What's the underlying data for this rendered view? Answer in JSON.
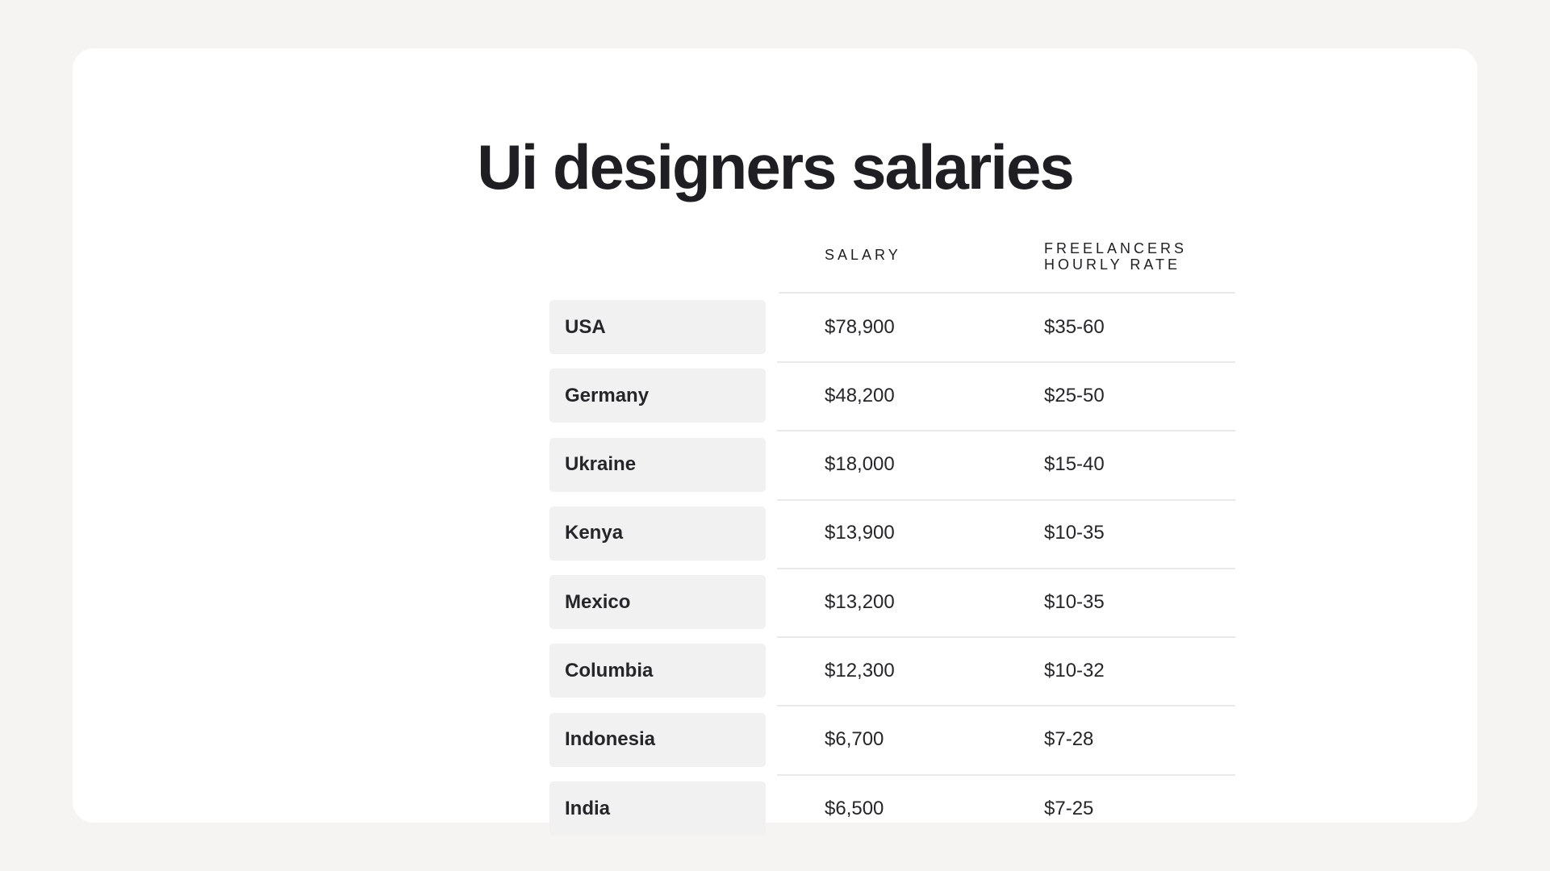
{
  "title": "Ui designers salaries",
  "chart_data": {
    "type": "table",
    "title": "Ui designers salaries",
    "columns": [
      "",
      "SALARY",
      "FREELANCERS HOURLY RATE"
    ],
    "rows": [
      {
        "country": "USA",
        "salary": "$78,900",
        "rate": "$35-60"
      },
      {
        "country": "Germany",
        "salary": "$48,200",
        "rate": "$25-50"
      },
      {
        "country": "Ukraine",
        "salary": "$18,000",
        "rate": "$15-40"
      },
      {
        "country": "Kenya",
        "salary": "$13,900",
        "rate": "$10-35"
      },
      {
        "country": "Mexico",
        "salary": "$13,200",
        "rate": "$10-35"
      },
      {
        "country": "Columbia",
        "salary": "$12,300",
        "rate": "$10-32"
      },
      {
        "country": "Indonesia",
        "salary": "$6,700",
        "rate": "$7-28"
      },
      {
        "country": "India",
        "salary": "$6,500",
        "rate": "$7-25"
      }
    ]
  },
  "colors": {
    "page_background": "#f5f4f2",
    "card_background": "#ffffff",
    "country_cell_background": "#f1f1f1",
    "text": "#222226",
    "rule": "#e9e9e9"
  }
}
